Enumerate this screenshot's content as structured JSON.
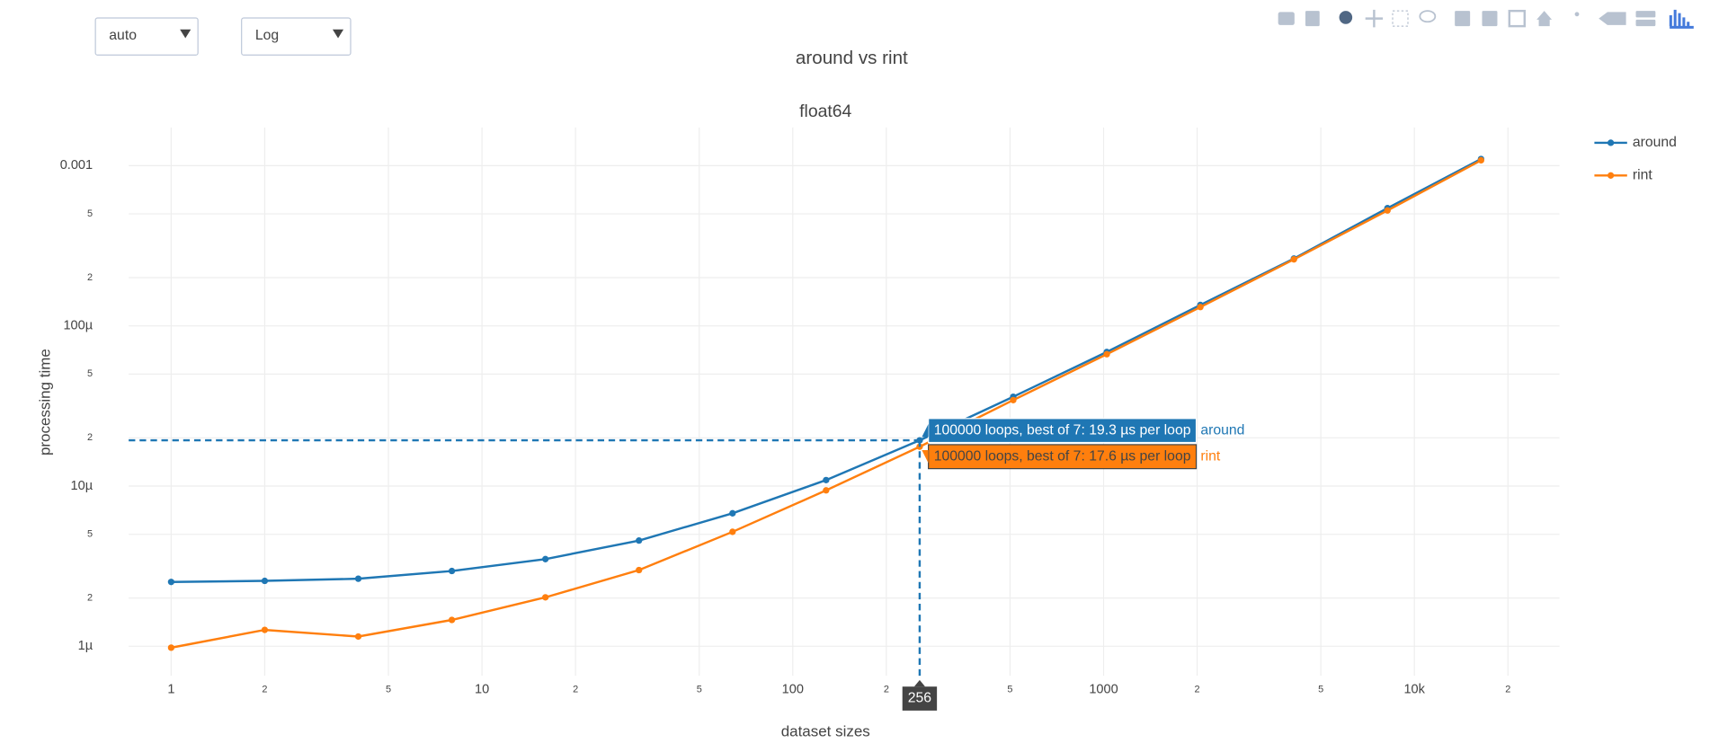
{
  "controls": {
    "dropdowns": [
      "auto",
      "Log"
    ]
  },
  "chart_data": {
    "type": "line",
    "title": "around vs rint",
    "subtitle": "float64",
    "x_label": "dataset sizes",
    "y_label": "processing time",
    "x": [
      1,
      2,
      4,
      8,
      16,
      32,
      64,
      128,
      256,
      512,
      1024,
      2048,
      4096,
      8192,
      16384
    ],
    "series": [
      {
        "name": "around",
        "color": "#1f77b4",
        "values": [
          2.52e-06,
          2.56e-06,
          2.64e-06,
          2.95e-06,
          3.5e-06,
          4.57e-06,
          6.76e-06,
          1.09e-05,
          1.93e-05,
          3.61e-05,
          6.87e-05,
          0.000135,
          0.000263,
          0.000543,
          0.0011
        ]
      },
      {
        "name": "rint",
        "color": "#ff7f0e",
        "values": [
          9.8e-07,
          1.265e-06,
          1.15e-06,
          1.46e-06,
          2.02e-06,
          2.99e-06,
          5.18e-06,
          9.4e-06,
          1.76e-05,
          3.44e-05,
          6.65e-05,
          0.000131,
          0.00026,
          0.000525,
          0.00108
        ]
      }
    ],
    "x_log": true,
    "y_log": true,
    "xlim": [
      0.73,
      29300
    ],
    "ylim": [
      6.55e-07,
      0.00173
    ],
    "xticks": [
      1,
      2,
      5,
      10,
      {
        "value": 20,
        "label": "2"
      },
      {
        "value": 50,
        "label": "5"
      },
      100,
      {
        "value": 200,
        "label": "2"
      },
      {
        "value": 500,
        "label": "5"
      },
      1000,
      {
        "value": 2000,
        "label": "2"
      },
      {
        "value": 5000,
        "label": "5"
      },
      {
        "value": 10000,
        "label": "10k"
      },
      {
        "value": 20000,
        "label": "2"
      }
    ],
    "yticks": [
      {
        "value": 1e-06,
        "label": "1µ"
      },
      {
        "value": 2e-06,
        "label": "2"
      },
      {
        "value": 5e-06,
        "label": "5"
      },
      {
        "value": 1e-05,
        "label": "10µ"
      },
      {
        "value": 2e-05,
        "label": "2"
      },
      {
        "value": 5e-05,
        "label": "5"
      },
      {
        "value": 0.0001,
        "label": "100µ"
      },
      {
        "value": 0.0002,
        "label": "2"
      },
      {
        "value": 0.0005,
        "label": "5"
      },
      0.001
    ],
    "grid": true,
    "legend": "top-right",
    "hover": {
      "x": {
        "value": 256,
        "label": "256"
      },
      "labels": [
        "100000 loops, best of 7: 19.3 µs per loop",
        "100000 loops, best of 7: 17.6 µs per loop"
      ]
    }
  }
}
